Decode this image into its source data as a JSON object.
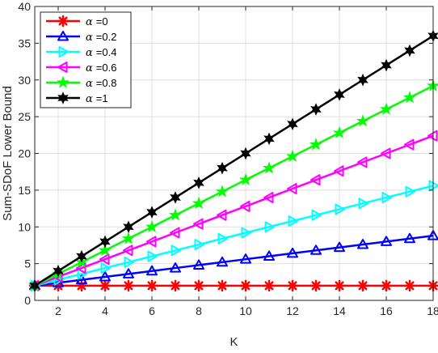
{
  "chart_data": {
    "type": "line",
    "xlabel": "K",
    "ylabel": "Sum-SDoF Lower Bound",
    "xlim": [
      1,
      18
    ],
    "ylim": [
      0,
      40
    ],
    "xticks": [
      2,
      4,
      6,
      8,
      10,
      12,
      14,
      16,
      18
    ],
    "yticks": [
      0,
      5,
      10,
      15,
      20,
      25,
      30,
      35,
      40
    ],
    "grid": true,
    "legend_position": "top-left",
    "x": [
      1,
      2,
      3,
      4,
      5,
      6,
      7,
      8,
      9,
      10,
      11,
      12,
      13,
      14,
      15,
      16,
      17,
      18
    ],
    "series": [
      {
        "name": "α =0",
        "alpha_symbol": "α",
        "alpha_value": "=0",
        "color": "#ff0000",
        "marker": "asterisk",
        "values": [
          2,
          2,
          2,
          2,
          2,
          2,
          2,
          2,
          2,
          2,
          2,
          2,
          2,
          2,
          2,
          2,
          2,
          2
        ]
      },
      {
        "name": "α =0.2",
        "alpha_symbol": "α",
        "alpha_value": "=0.2",
        "color": "#0000ff",
        "marker": "triangle-up",
        "values": [
          2,
          2.4,
          2.8,
          3.2,
          3.6,
          4.0,
          4.4,
          4.8,
          5.2,
          5.6,
          6.0,
          6.4,
          6.8,
          7.2,
          7.6,
          8.0,
          8.4,
          8.8
        ]
      },
      {
        "name": "α =0.4",
        "alpha_symbol": "α",
        "alpha_value": "=0.4",
        "color": "#00ffff",
        "marker": "triangle-right",
        "values": [
          2,
          2.8,
          3.6,
          4.4,
          5.2,
          6.0,
          6.8,
          7.6,
          8.4,
          9.2,
          10.0,
          10.8,
          11.6,
          12.4,
          13.2,
          14.0,
          14.8,
          15.6
        ]
      },
      {
        "name": "α =0.6",
        "alpha_symbol": "α",
        "alpha_value": "=0.6",
        "color": "#ff00ff",
        "marker": "triangle-left",
        "values": [
          2,
          3.2,
          4.4,
          5.6,
          6.8,
          8.0,
          9.2,
          10.4,
          11.6,
          12.8,
          14.0,
          15.2,
          16.4,
          17.6,
          18.8,
          20.0,
          21.2,
          22.4
        ]
      },
      {
        "name": "α =0.8",
        "alpha_symbol": "α",
        "alpha_value": "=0.8",
        "color": "#00ff00",
        "marker": "pentagram",
        "values": [
          2,
          3.6,
          5.2,
          6.8,
          8.4,
          10.0,
          11.6,
          13.2,
          14.8,
          16.4,
          18.0,
          19.6,
          21.2,
          22.8,
          24.4,
          26.0,
          27.6,
          29.2
        ]
      },
      {
        "name": "α =1",
        "alpha_symbol": "α",
        "alpha_value": "=1",
        "color": "#000000",
        "marker": "hexagram",
        "values": [
          2,
          4,
          6,
          8,
          10,
          12,
          14,
          16,
          18,
          20,
          22,
          24,
          26,
          28,
          30,
          32,
          34,
          36
        ]
      }
    ]
  }
}
